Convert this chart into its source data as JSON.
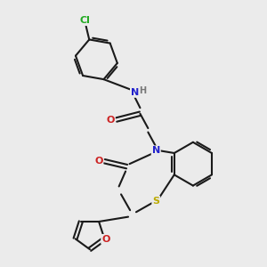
{
  "background_color": "#ebebeb",
  "bond_color": "#1a1a1a",
  "atom_colors": {
    "Cl": "#22aa22",
    "N": "#2222cc",
    "H": "#888888",
    "O": "#cc2222",
    "S": "#bbaa00",
    "C": "#1a1a1a"
  }
}
